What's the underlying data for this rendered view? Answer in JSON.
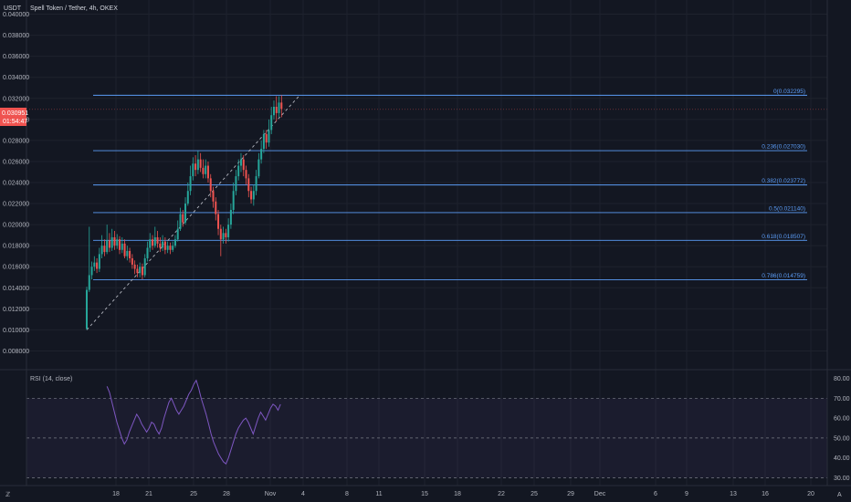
{
  "header": {
    "currency": "USDT",
    "symbol_line": "Spell Token / Tether, 4h, OKEX"
  },
  "price_badge": {
    "price": "0.030951",
    "countdown": "01:54:47"
  },
  "rsi_panel": {
    "label": "RSI (14, close)"
  },
  "colors": {
    "background": "#131722",
    "up": "#26a69a",
    "down": "#ef5350",
    "fib_line": "#5b9cf6",
    "rsi_line": "#7e57c2",
    "price_badge": "#ef5350"
  },
  "chart_data": [
    {
      "type": "candlestick",
      "title": "Spell Token / Tether, 4h, OKEX",
      "y_axis_label": "USDT",
      "ylim": [
        0.007,
        0.041
      ],
      "y_ticks": [
        "0.040000",
        "0.038000",
        "0.036000",
        "0.034000",
        "0.032000",
        "0.030000",
        "0.028000",
        "0.026000",
        "0.024000",
        "0.022000",
        "0.020000",
        "0.018000",
        "0.016000",
        "0.014000",
        "0.012000",
        "0.010000",
        "0.008000"
      ],
      "x_ticks": [
        "18",
        "21",
        "25",
        "28",
        "Nov",
        "4",
        "8",
        "11",
        "15",
        "18",
        "22",
        "25",
        "29",
        "Dec",
        "6",
        "9",
        "13",
        "16",
        "20"
      ],
      "fib_levels": [
        {
          "label": "0(0.032295)",
          "value": 0.032295
        },
        {
          "label": "0.236(0.027030)",
          "value": 0.02703
        },
        {
          "label": "0.382(0.023772)",
          "value": 0.023772
        },
        {
          "label": "0.5(0.021140)",
          "value": 0.02114
        },
        {
          "label": "0.618(0.018507)",
          "value": 0.018507
        },
        {
          "label": "0.786(0.014759)",
          "value": 0.014759
        }
      ],
      "trend_line": {
        "from_value": 0.01,
        "to_value": 0.0323
      },
      "candles": [
        [
          0.0101,
          0.0138,
          0.01,
          0.0141
        ],
        [
          0.0138,
          0.0152,
          0.0136,
          0.0198
        ],
        [
          0.0152,
          0.016,
          0.0148,
          0.0165
        ],
        [
          0.016,
          0.0164,
          0.0156,
          0.017
        ],
        [
          0.0164,
          0.0158,
          0.0154,
          0.0168
        ],
        [
          0.0158,
          0.0172,
          0.0155,
          0.0178
        ],
        [
          0.0172,
          0.018,
          0.0168,
          0.019
        ],
        [
          0.018,
          0.0174,
          0.017,
          0.0186
        ],
        [
          0.0174,
          0.0185,
          0.0172,
          0.02
        ],
        [
          0.0185,
          0.0178,
          0.0174,
          0.0192
        ],
        [
          0.0178,
          0.0188,
          0.0175,
          0.0196
        ],
        [
          0.0188,
          0.018,
          0.0176,
          0.0194
        ],
        [
          0.018,
          0.0186,
          0.0177,
          0.0191
        ],
        [
          0.0186,
          0.0176,
          0.0172,
          0.0189
        ],
        [
          0.0176,
          0.0182,
          0.0173,
          0.0188
        ],
        [
          0.0182,
          0.017,
          0.0168,
          0.0186
        ],
        [
          0.017,
          0.0175,
          0.0166,
          0.018
        ],
        [
          0.0175,
          0.0168,
          0.0164,
          0.0178
        ],
        [
          0.0168,
          0.0162,
          0.0158,
          0.0172
        ],
        [
          0.0162,
          0.0158,
          0.0153,
          0.0166
        ],
        [
          0.0158,
          0.0154,
          0.015,
          0.0162
        ],
        [
          0.0154,
          0.016,
          0.015,
          0.0164
        ],
        [
          0.016,
          0.0152,
          0.0148,
          0.0163
        ],
        [
          0.0152,
          0.0168,
          0.015,
          0.0172
        ],
        [
          0.0168,
          0.0178,
          0.0165,
          0.0184
        ],
        [
          0.0178,
          0.0186,
          0.0174,
          0.0192
        ],
        [
          0.0186,
          0.018,
          0.0176,
          0.019
        ],
        [
          0.018,
          0.0188,
          0.0178,
          0.0198
        ],
        [
          0.0188,
          0.0182,
          0.0178,
          0.0194
        ],
        [
          0.0182,
          0.0178,
          0.0174,
          0.0188
        ],
        [
          0.0178,
          0.0184,
          0.0175,
          0.019
        ],
        [
          0.0184,
          0.0176,
          0.0172,
          0.0188
        ],
        [
          0.0176,
          0.018,
          0.0173,
          0.0184
        ],
        [
          0.018,
          0.0176,
          0.0172,
          0.0183
        ],
        [
          0.0176,
          0.018,
          0.0174,
          0.0184
        ],
        [
          0.018,
          0.0186,
          0.0178,
          0.019
        ],
        [
          0.0186,
          0.0196,
          0.0184,
          0.0204
        ],
        [
          0.0196,
          0.021,
          0.0194,
          0.0216
        ],
        [
          0.021,
          0.0202,
          0.0198,
          0.0214
        ],
        [
          0.0202,
          0.022,
          0.02,
          0.0226
        ],
        [
          0.022,
          0.0232,
          0.0218,
          0.024
        ],
        [
          0.0232,
          0.0246,
          0.0228,
          0.0256
        ],
        [
          0.0246,
          0.0258,
          0.0242,
          0.0264
        ],
        [
          0.0258,
          0.0252,
          0.0246,
          0.0266
        ],
        [
          0.0252,
          0.0262,
          0.0248,
          0.027
        ],
        [
          0.0262,
          0.0254,
          0.025,
          0.0268
        ],
        [
          0.0254,
          0.0248,
          0.0244,
          0.0262
        ],
        [
          0.0248,
          0.0256,
          0.0244,
          0.0262
        ],
        [
          0.0256,
          0.0244,
          0.024,
          0.026
        ],
        [
          0.0244,
          0.0232,
          0.0226,
          0.0248
        ],
        [
          0.0232,
          0.0222,
          0.0216,
          0.0236
        ],
        [
          0.0222,
          0.021,
          0.0204,
          0.0226
        ],
        [
          0.021,
          0.0196,
          0.019,
          0.0214
        ],
        [
          0.0196,
          0.0186,
          0.017,
          0.02
        ],
        [
          0.0186,
          0.0192,
          0.0182,
          0.0198
        ],
        [
          0.0192,
          0.0188,
          0.0182,
          0.0196
        ],
        [
          0.0188,
          0.02,
          0.0184,
          0.0206
        ],
        [
          0.02,
          0.0214,
          0.0196,
          0.022
        ],
        [
          0.0214,
          0.0232,
          0.021,
          0.024
        ],
        [
          0.0232,
          0.0246,
          0.0228,
          0.0252
        ],
        [
          0.0246,
          0.0256,
          0.0242,
          0.0262
        ],
        [
          0.0256,
          0.0262,
          0.025,
          0.0268
        ],
        [
          0.0262,
          0.0252,
          0.0246,
          0.0266
        ],
        [
          0.0252,
          0.0244,
          0.0238,
          0.0256
        ],
        [
          0.0244,
          0.0232,
          0.0226,
          0.0248
        ],
        [
          0.0232,
          0.0224,
          0.022,
          0.0236
        ],
        [
          0.0224,
          0.0232,
          0.0218,
          0.0238
        ],
        [
          0.0232,
          0.0246,
          0.0228,
          0.0252
        ],
        [
          0.0246,
          0.0262,
          0.0244,
          0.0268
        ],
        [
          0.0262,
          0.0272,
          0.0258,
          0.028
        ],
        [
          0.0272,
          0.0286,
          0.0268,
          0.029
        ],
        [
          0.0286,
          0.0278,
          0.0272,
          0.029
        ],
        [
          0.0278,
          0.029,
          0.0274,
          0.03
        ],
        [
          0.029,
          0.0304,
          0.0286,
          0.0312
        ],
        [
          0.0304,
          0.0312,
          0.03,
          0.0318
        ],
        [
          0.0312,
          0.0306,
          0.0298,
          0.0322
        ],
        [
          0.0306,
          0.0316,
          0.0302,
          0.0322
        ],
        [
          0.0316,
          0.031,
          0.0302,
          0.0323
        ]
      ]
    },
    {
      "type": "line",
      "title": "RSI (14, close)",
      "ylim": [
        27,
        83
      ],
      "y_ticks": [
        "80.00",
        "70.00",
        "60.00",
        "50.00",
        "40.00",
        "30.00"
      ],
      "bands": [
        70,
        50,
        30
      ],
      "values": [
        76,
        73,
        68,
        63,
        58,
        54,
        50,
        47,
        49,
        53,
        56,
        59,
        62,
        60,
        57,
        55,
        53,
        55,
        58,
        57,
        54,
        52,
        55,
        60,
        64,
        68,
        70,
        67,
        64,
        62,
        64,
        66,
        69,
        72,
        74,
        77,
        79,
        75,
        70,
        66,
        62,
        57,
        52,
        48,
        45,
        42,
        40,
        38,
        37,
        40,
        44,
        48,
        52,
        55,
        57,
        59,
        60,
        58,
        55,
        52,
        56,
        60,
        63,
        61,
        59,
        62,
        65,
        67,
        66,
        64,
        67
      ],
      "rsi_start_index": 8
    }
  ]
}
